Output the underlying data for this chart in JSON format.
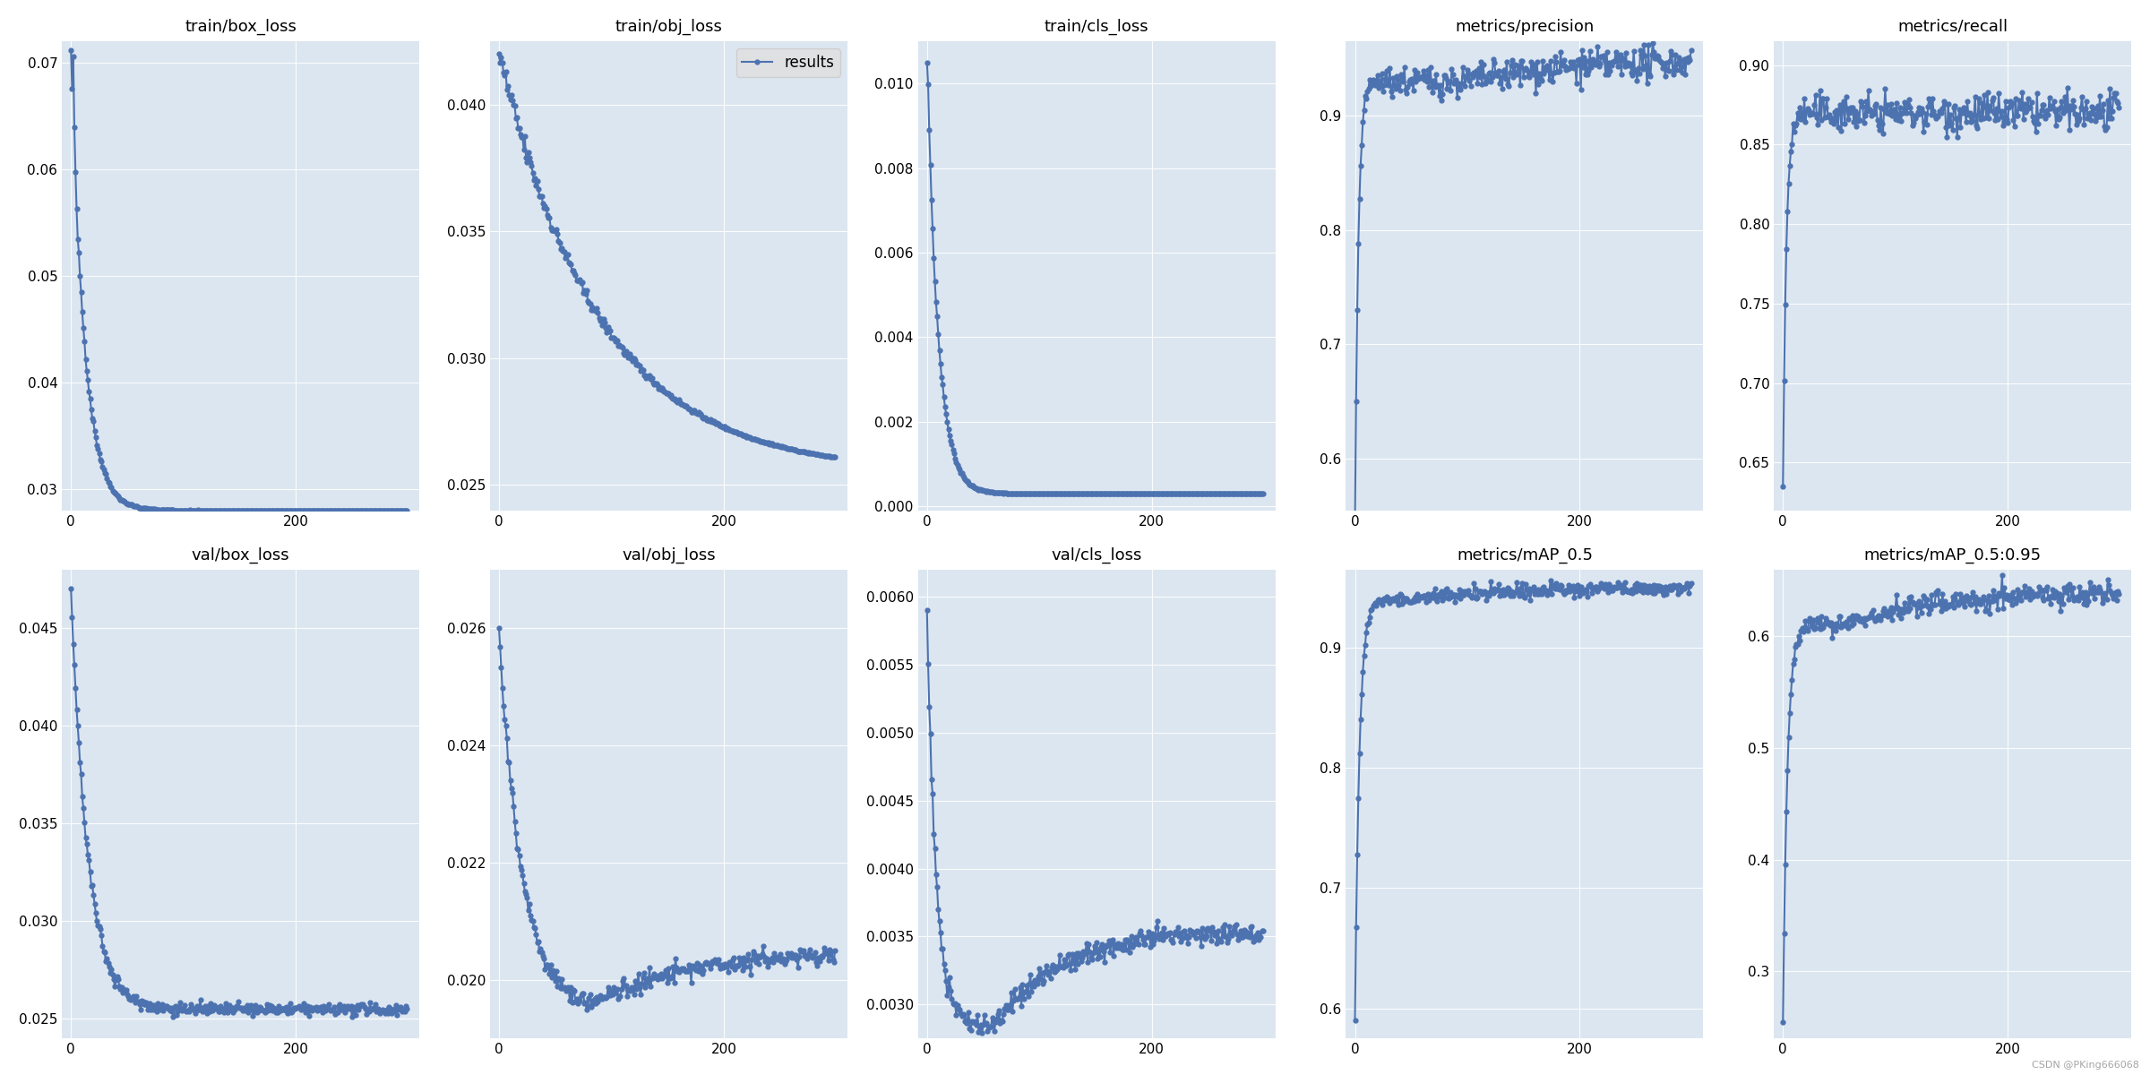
{
  "titles": [
    "train/box_loss",
    "train/obj_loss",
    "train/cls_loss",
    "metrics/precision",
    "metrics/recall",
    "val/box_loss",
    "val/obj_loss",
    "val/cls_loss",
    "metrics/mAP_0.5",
    "metrics/mAP_0.5:0.95"
  ],
  "legend_subplot": 1,
  "legend_label": "results",
  "line_color": "#4c72b0",
  "marker": "o",
  "markersize": 3.5,
  "linewidth": 1.5,
  "bg_color": "#dce6f0",
  "fig_bg_color": "#ffffff",
  "n_epochs": 300,
  "xticks": [
    0,
    200
  ],
  "ylims": {
    "train/box_loss": [
      0.028,
      0.072
    ],
    "train/obj_loss": [
      0.024,
      0.0425
    ],
    "train/cls_loss": [
      -0.0001,
      0.011
    ],
    "metrics/precision": [
      0.555,
      0.965
    ],
    "metrics/recall": [
      0.62,
      0.915
    ],
    "val/box_loss": [
      0.024,
      0.048
    ],
    "val/obj_loss": [
      0.019,
      0.027
    ],
    "val/cls_loss": [
      0.00275,
      0.0062
    ],
    "metrics/mAP_0.5": [
      0.575,
      0.965
    ],
    "metrics/mAP_0.5:0.95": [
      0.24,
      0.66
    ]
  },
  "yticks": {
    "train/box_loss": [
      0.03,
      0.04,
      0.05,
      0.06,
      0.07
    ],
    "train/obj_loss": [
      0.025,
      0.03,
      0.035,
      0.04
    ],
    "train/cls_loss": [
      0.0,
      0.002,
      0.004,
      0.006,
      0.008,
      0.01
    ],
    "metrics/precision": [
      0.6,
      0.7,
      0.8,
      0.9
    ],
    "metrics/recall": [
      0.65,
      0.7,
      0.75,
      0.8,
      0.85,
      0.9
    ],
    "val/box_loss": [
      0.025,
      0.03,
      0.035,
      0.04,
      0.045
    ],
    "val/obj_loss": [
      0.02,
      0.022,
      0.024,
      0.026
    ],
    "val/cls_loss": [
      0.003,
      0.0035,
      0.004,
      0.0045,
      0.005,
      0.0055,
      0.006
    ],
    "metrics/mAP_0.5": [
      0.6,
      0.7,
      0.8,
      0.9
    ],
    "metrics/mAP_0.5:0.95": [
      0.3,
      0.4,
      0.5,
      0.6
    ]
  }
}
